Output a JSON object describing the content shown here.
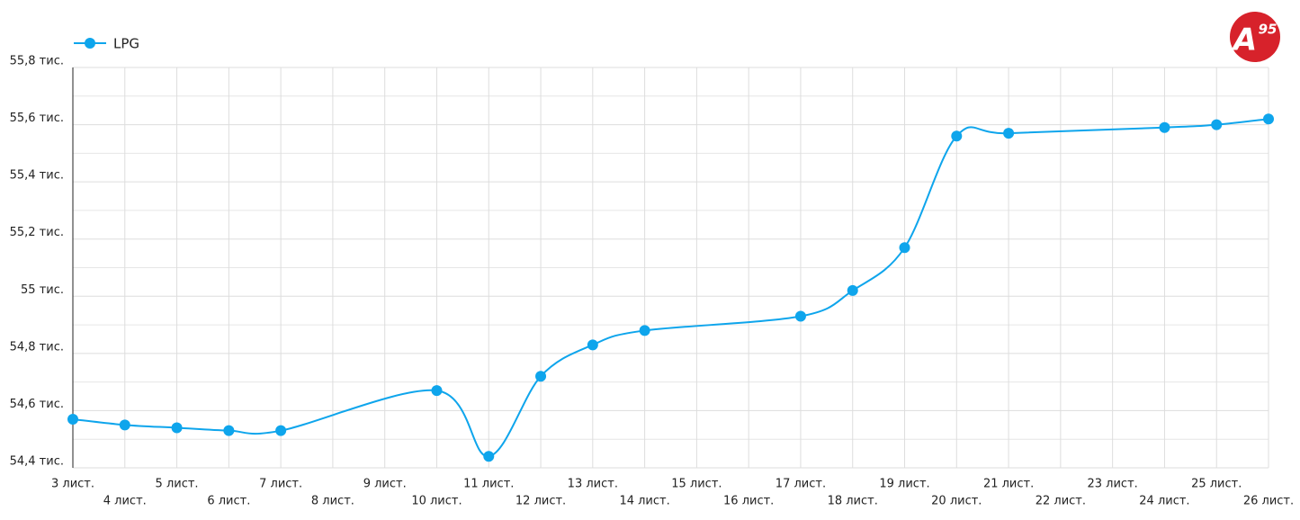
{
  "chart_data": {
    "type": "line",
    "x": [
      3,
      4,
      5,
      6,
      7,
      10,
      11,
      12,
      13,
      14,
      17,
      18,
      19,
      20,
      21,
      24,
      25,
      26
    ],
    "series": [
      {
        "name": "LPG",
        "color": "#0ea5ec",
        "values": [
          54.57,
          54.55,
          54.54,
          54.53,
          54.53,
          54.67,
          54.44,
          54.72,
          54.83,
          54.88,
          54.93,
          55.02,
          55.17,
          55.56,
          55.57,
          55.59,
          55.6,
          55.62
        ]
      }
    ],
    "xlim": [
      3,
      26
    ],
    "xticks": [
      {
        "value": 3,
        "label": "3 лист."
      },
      {
        "value": 4,
        "label": "4 лист."
      },
      {
        "value": 5,
        "label": "5 лист."
      },
      {
        "value": 6,
        "label": "6 лист."
      },
      {
        "value": 7,
        "label": "7 лист."
      },
      {
        "value": 8,
        "label": "8 лист."
      },
      {
        "value": 9,
        "label": "9 лист."
      },
      {
        "value": 10,
        "label": "10 лист."
      },
      {
        "value": 11,
        "label": "11 лист."
      },
      {
        "value": 12,
        "label": "12 лист."
      },
      {
        "value": 13,
        "label": "13 лист."
      },
      {
        "value": 14,
        "label": "14 лист."
      },
      {
        "value": 15,
        "label": "15 лист."
      },
      {
        "value": 16,
        "label": "16 лист."
      },
      {
        "value": 17,
        "label": "17 лист."
      },
      {
        "value": 18,
        "label": "18 лист."
      },
      {
        "value": 19,
        "label": "19 лист."
      },
      {
        "value": 20,
        "label": "20 лист."
      },
      {
        "value": 21,
        "label": "21 лист."
      },
      {
        "value": 22,
        "label": "22 лист."
      },
      {
        "value": 23,
        "label": "23 лист."
      },
      {
        "value": 24,
        "label": "24 лист."
      },
      {
        "value": 25,
        "label": "25 лист."
      },
      {
        "value": 26,
        "label": "26 лист."
      }
    ],
    "ylim": [
      54.4,
      55.8
    ],
    "yticks": [
      {
        "value": 54.4,
        "label": "54,4 тис."
      },
      {
        "value": 54.6,
        "label": "54,6 тис."
      },
      {
        "value": 54.8,
        "label": "54,8 тис."
      },
      {
        "value": 55,
        "label": "55 тис."
      },
      {
        "value": 55.2,
        "label": "55,2 тис."
      },
      {
        "value": 55.4,
        "label": "55,4 тис."
      },
      {
        "value": 55.6,
        "label": "55,6 тис."
      },
      {
        "value": 55.8,
        "label": "55,8 тис."
      }
    ],
    "grid": true,
    "legend": "top-left"
  },
  "logo": {
    "letter": "A",
    "number": "95"
  }
}
